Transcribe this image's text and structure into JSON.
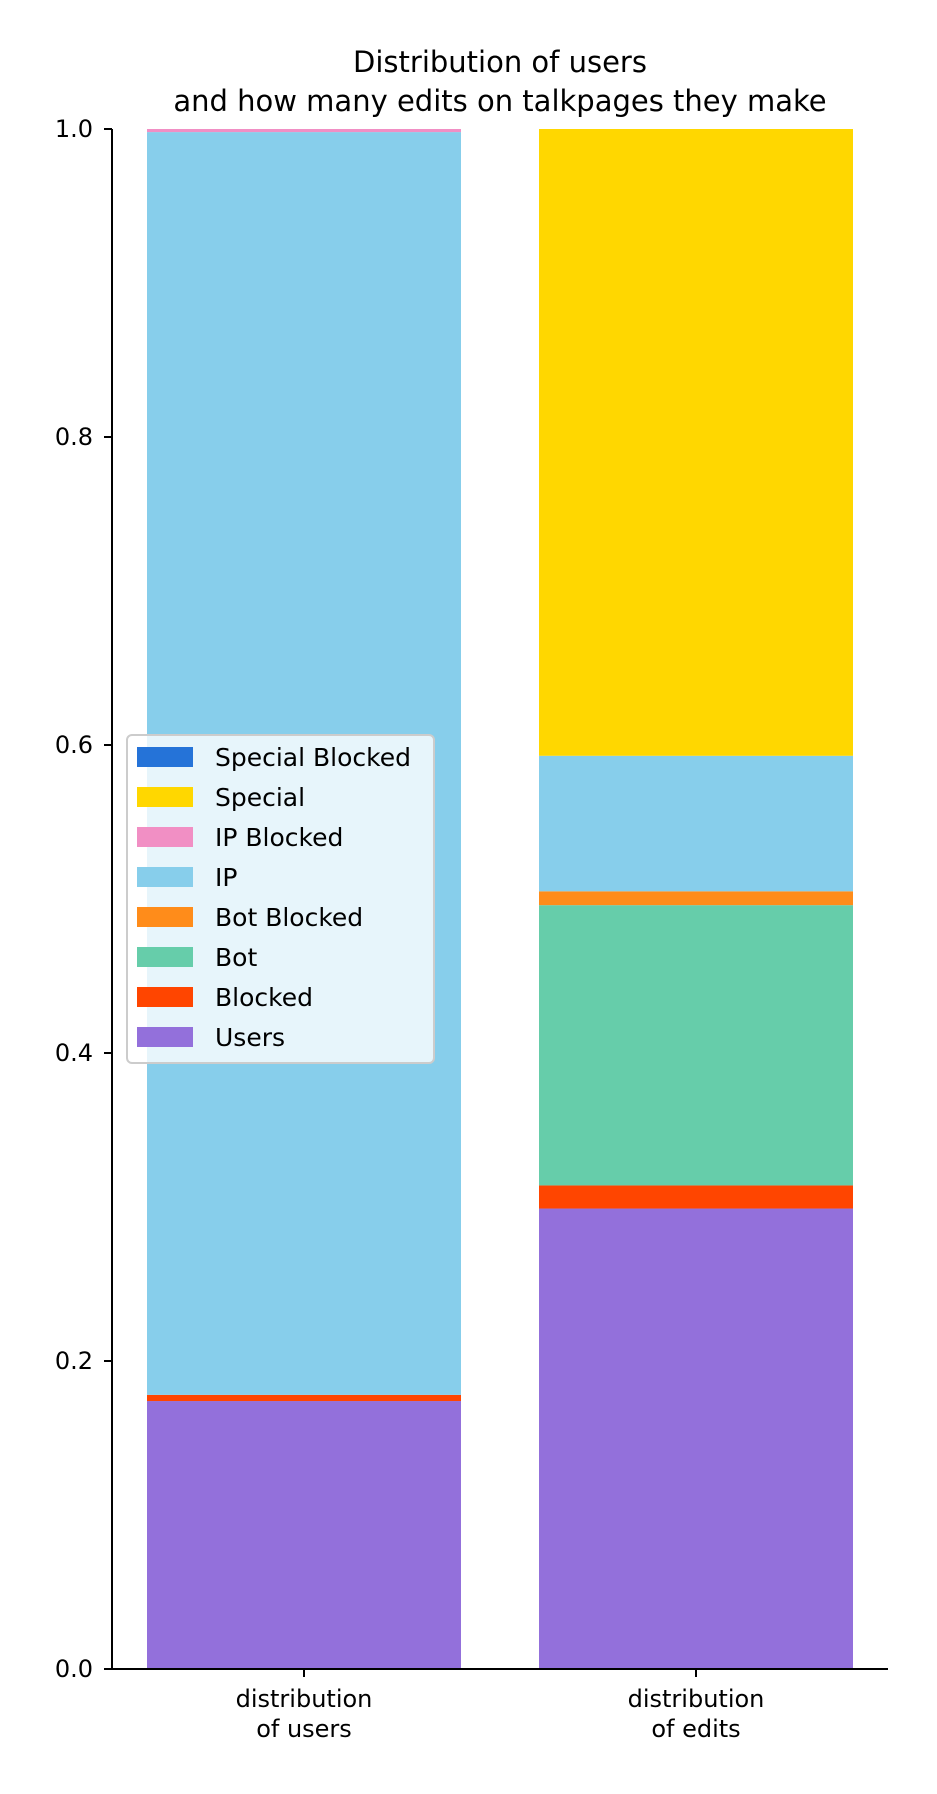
{
  "chart_data": {
    "type": "bar",
    "stacked": true,
    "title_lines": [
      "Distribution of users",
      "and how many edits on talkpages they make"
    ],
    "categories": [
      {
        "lines": [
          "distribution",
          "of users"
        ]
      },
      {
        "lines": [
          "distribution",
          "of edits"
        ]
      }
    ],
    "ylim": [
      0,
      1.0
    ],
    "yticks": [
      "0.0",
      "0.2",
      "0.4",
      "0.6",
      "0.8",
      "1.0"
    ],
    "grid": false,
    "legend_position": "center-left",
    "series": [
      {
        "name": "Users",
        "color": "#9370DB",
        "values": [
          0.174,
          0.299
        ]
      },
      {
        "name": "Blocked",
        "color": "#FF4500",
        "values": [
          0.004,
          0.015
        ]
      },
      {
        "name": "Bot",
        "color": "#66CDAA",
        "values": [
          0.0,
          0.182
        ]
      },
      {
        "name": "Bot Blocked",
        "color": "#FF8C1A",
        "values": [
          0.0,
          0.009
        ]
      },
      {
        "name": "IP",
        "color": "#87CEEB",
        "values": [
          0.82,
          0.088
        ]
      },
      {
        "name": "IP Blocked",
        "color": "#F18FC4",
        "values": [
          0.002,
          0.0
        ]
      },
      {
        "name": "Special",
        "color": "#FFD700",
        "values": [
          0.0,
          0.407
        ]
      },
      {
        "name": "Special Blocked",
        "color": "#2573D8",
        "values": [
          0.0,
          0.0
        ]
      }
    ]
  }
}
